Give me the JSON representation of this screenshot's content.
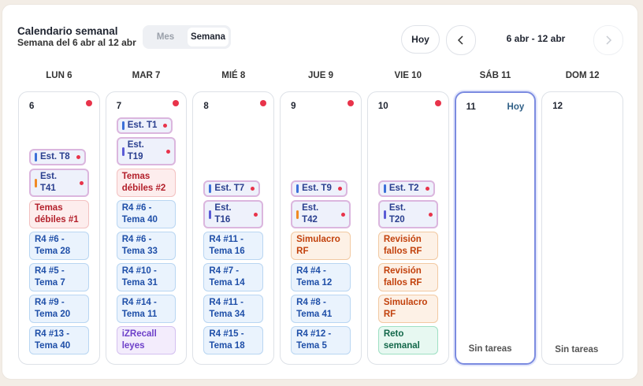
{
  "header": {
    "title": "Calendario semanal",
    "subtitle": "Semana del 6 abr al 12 abr",
    "tabs": [
      {
        "label": "Mes",
        "active": false
      },
      {
        "label": "Semana",
        "active": true
      }
    ],
    "today_button": "Hoy",
    "range": "6 abr - 12 abr"
  },
  "days": [
    {
      "header": "LUN 6",
      "number": "6",
      "dot": true,
      "tasks": [
        {
          "label": "Est. T8",
          "kind": "study",
          "bar": "#3b6fd8",
          "dot": true
        },
        {
          "label": "Est. T41",
          "kind": "study",
          "bar": "#f08a24",
          "dot": true
        },
        {
          "label": "Temas débiles #1",
          "kind": "weak"
        },
        {
          "label": "R4 #6 - Tema 28",
          "kind": "review"
        },
        {
          "label": "R4 #5 - Tema 7",
          "kind": "review"
        },
        {
          "label": "R4 #9 - Tema 20",
          "kind": "review"
        },
        {
          "label": "R4 #13 - Tema 40",
          "kind": "review"
        }
      ]
    },
    {
      "header": "MAR 7",
      "number": "7",
      "dot": true,
      "tasks": [
        {
          "label": "Est. T1",
          "kind": "study",
          "bar": "#3b6fd8",
          "dot": true
        },
        {
          "label": "Est. T19",
          "kind": "study",
          "bar": "#5b5bd6",
          "dot": true
        },
        {
          "label": "Temas débiles #2",
          "kind": "weak"
        },
        {
          "label": "R4 #6 - Tema 40",
          "kind": "review"
        },
        {
          "label": "R4 #6 - Tema 33",
          "kind": "review"
        },
        {
          "label": "R4 #10 - Tema 31",
          "kind": "review"
        },
        {
          "label": "R4 #14 - Tema 11",
          "kind": "review"
        },
        {
          "label": "iZRecall leyes",
          "kind": "recall"
        }
      ]
    },
    {
      "header": "MIÉ 8",
      "number": "8",
      "dot": true,
      "tasks": [
        {
          "label": "Est. T7",
          "kind": "study",
          "bar": "#3b6fd8",
          "dot": true
        },
        {
          "label": "Est. T16",
          "kind": "study",
          "bar": "#5b5bd6",
          "dot": true
        },
        {
          "label": "R4 #11 - Tema 16",
          "kind": "review"
        },
        {
          "label": "R4 #7 - Tema 14",
          "kind": "review"
        },
        {
          "label": "R4 #11 - Tema 34",
          "kind": "review"
        },
        {
          "label": "R4 #15 - Tema 18",
          "kind": "review"
        }
      ]
    },
    {
      "header": "JUE 9",
      "number": "9",
      "dot": true,
      "tasks": [
        {
          "label": "Est. T9",
          "kind": "study",
          "bar": "#3b6fd8",
          "dot": true
        },
        {
          "label": "Est. T42",
          "kind": "study",
          "bar": "#f08a24",
          "dot": true
        },
        {
          "label": "Simulacro RF",
          "kind": "exam"
        },
        {
          "label": "R4 #4 - Tema 12",
          "kind": "review"
        },
        {
          "label": "R4 #8 - Tema 41",
          "kind": "review"
        },
        {
          "label": "R4 #12 - Tema 5",
          "kind": "review"
        }
      ]
    },
    {
      "header": "VIE 10",
      "number": "10",
      "dot": true,
      "tasks": [
        {
          "label": "Est. T2",
          "kind": "study",
          "bar": "#3b6fd8",
          "dot": true
        },
        {
          "label": "Est. T20",
          "kind": "study",
          "bar": "#5b5bd6",
          "dot": true
        },
        {
          "label": "Revisión fallos RF",
          "kind": "exam"
        },
        {
          "label": "Revisión fallos RF",
          "kind": "exam"
        },
        {
          "label": "Simulacro RF",
          "kind": "exam"
        },
        {
          "label": "Reto semanal",
          "kind": "challenge"
        }
      ]
    },
    {
      "header": "SÁB 11",
      "number": "11",
      "today": "Hoy",
      "empty": "Sin tareas",
      "tasks": []
    },
    {
      "header": "DOM 12",
      "number": "12",
      "empty": "Sin tareas",
      "tasks": []
    }
  ]
}
